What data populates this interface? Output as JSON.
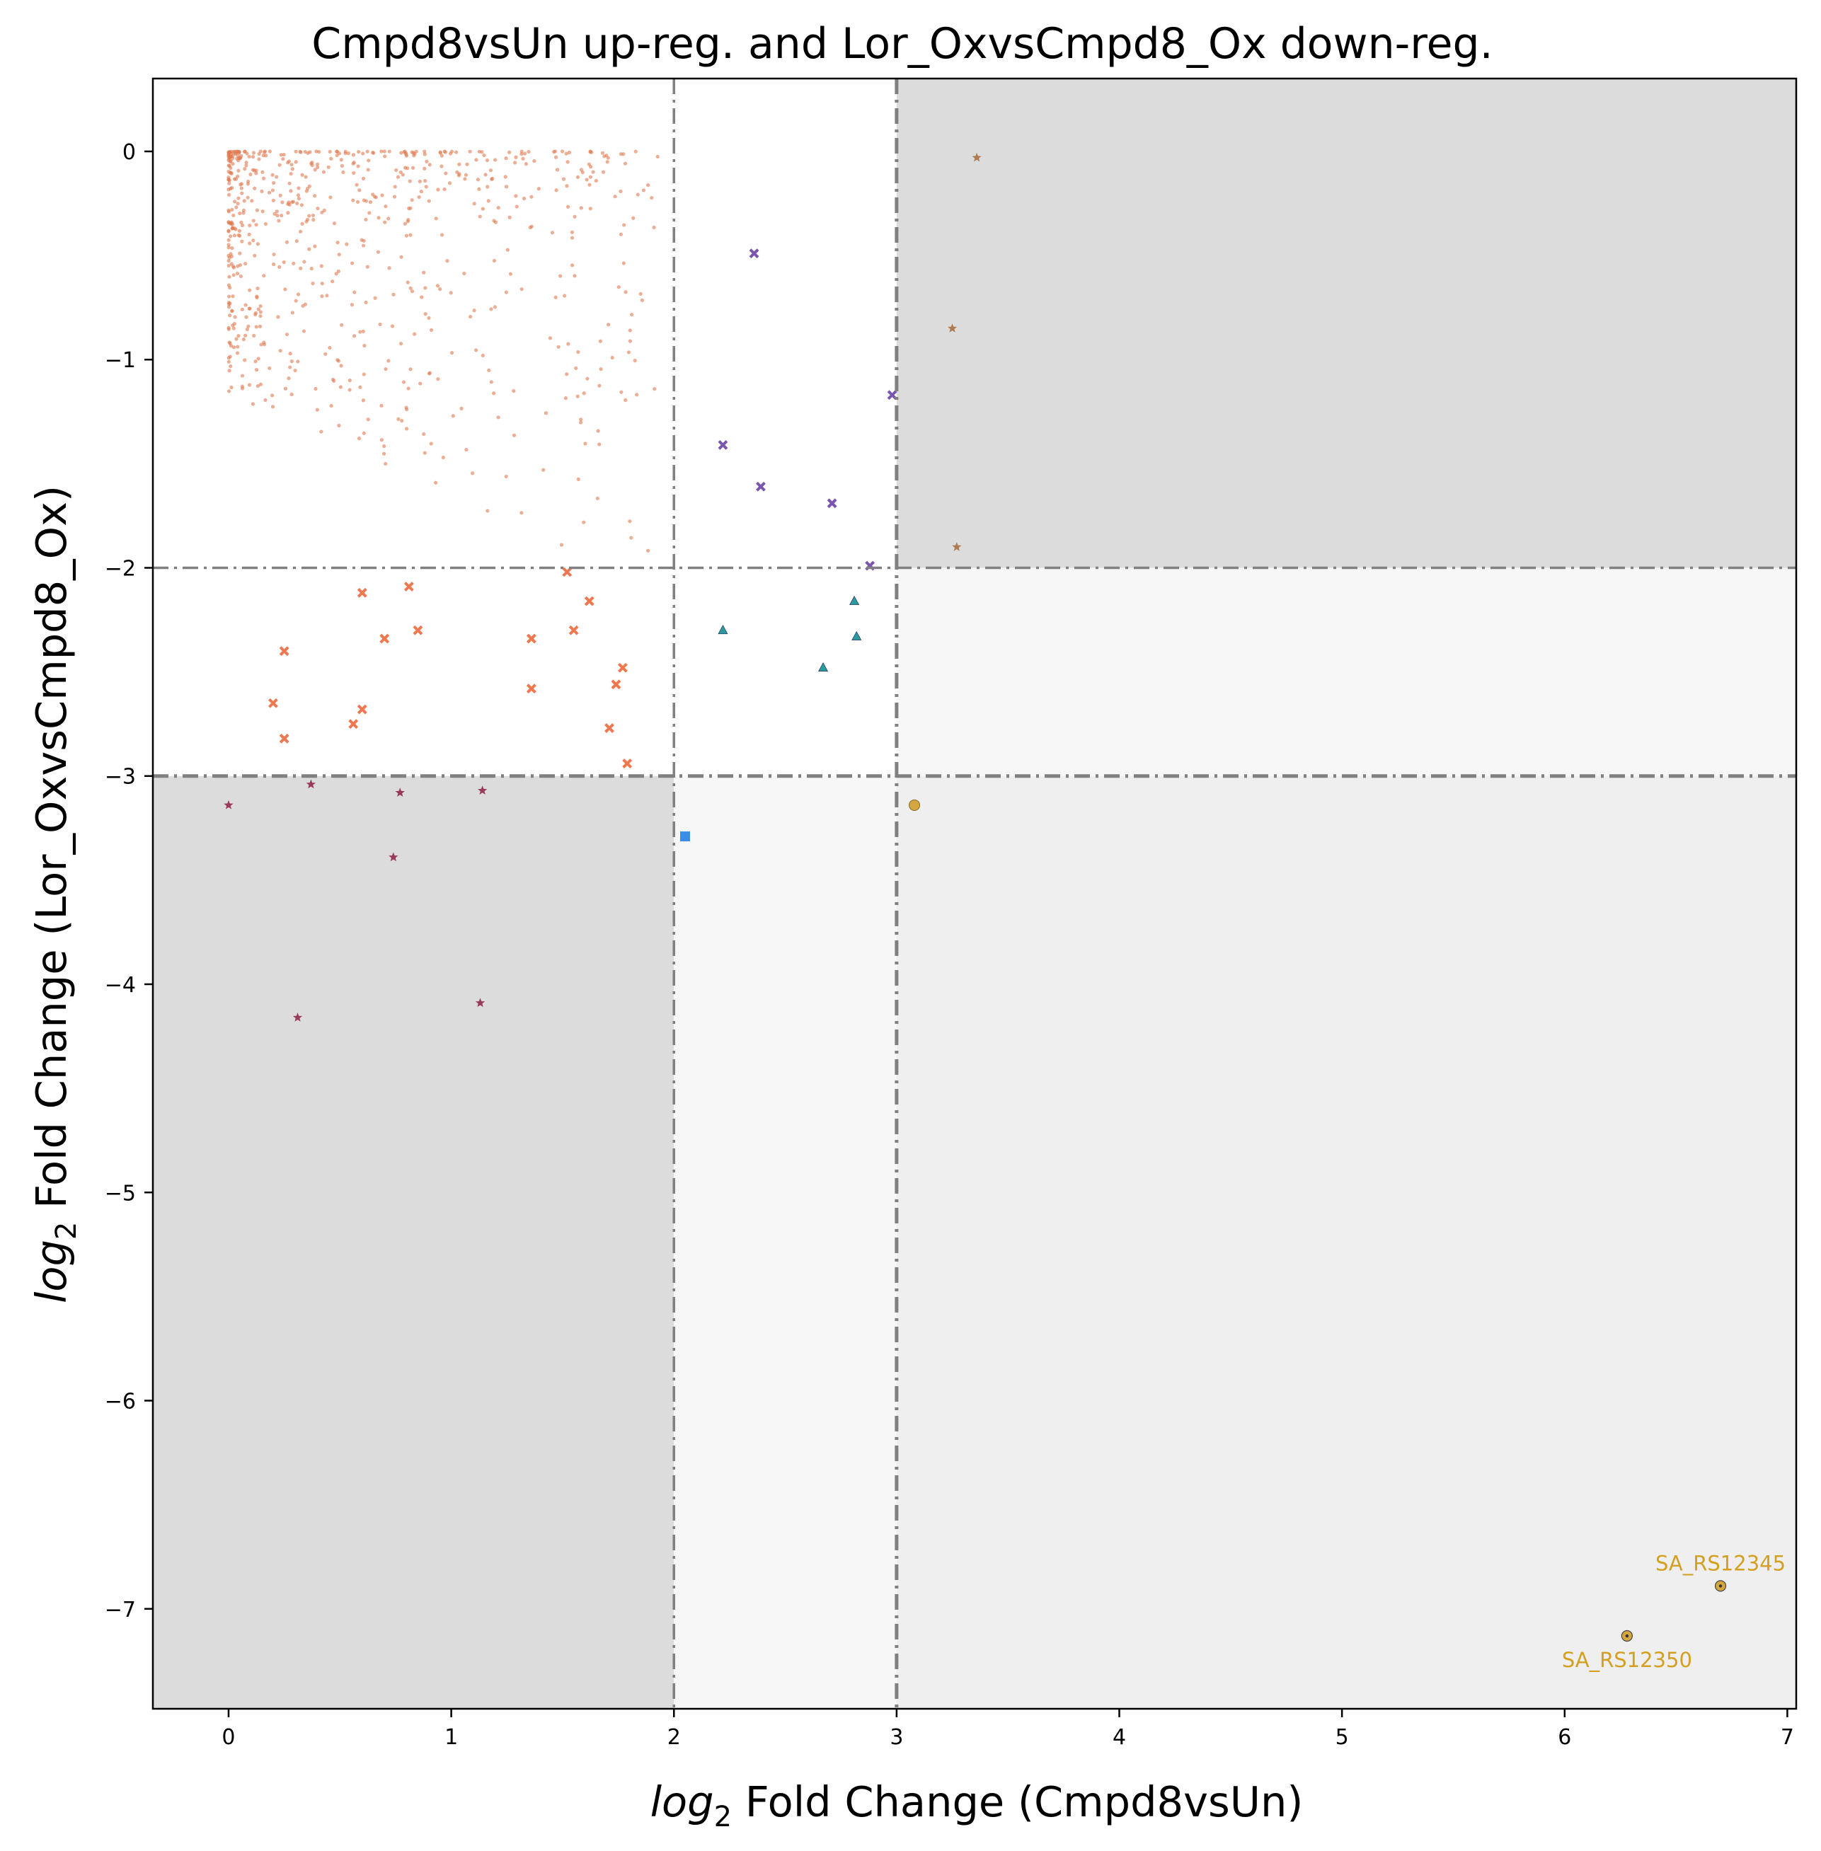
{
  "chart_data": {
    "type": "scatter",
    "title": "Cmpd8vsUn up-reg. and Lor_OxvsCmpd8_Ox down-reg.",
    "xlabel": {
      "italic": "log",
      "sub": "2",
      "rest": " Fold Change (Cmpd8vsUn)"
    },
    "ylabel": {
      "italic": "log",
      "sub": "2",
      "rest": " Fold Change (Lor_OxvsCmpd8_Ox)"
    },
    "xlim": [
      -0.34,
      7.04
    ],
    "ylim": [
      -7.48,
      0.35
    ],
    "x_ticks": [
      0,
      1,
      2,
      3,
      4,
      5,
      6,
      7
    ],
    "y_ticks": [
      0,
      -1,
      -2,
      -3,
      -4,
      -5,
      -6,
      -7
    ],
    "x_tick_labels": [
      "0",
      "1",
      "2",
      "3",
      "4",
      "5",
      "6",
      "7"
    ],
    "y_tick_labels": [
      "0",
      "−1",
      "−2",
      "−3",
      "−4",
      "−5",
      "−6",
      "−7"
    ],
    "grid": false,
    "thresholds": {
      "x": [
        2,
        3
      ],
      "y": [
        -2,
        -3
      ]
    },
    "regions": [
      {
        "x": [
          3,
          7.04
        ],
        "y": [
          -2,
          0.35
        ],
        "color": "#dcdcdc"
      },
      {
        "x": [
          -0.34,
          2
        ],
        "y": [
          -7.48,
          -3
        ],
        "color": "#dcdcdc"
      },
      {
        "x": [
          3,
          7.04
        ],
        "y": [
          -3,
          -2
        ],
        "color": "#f7f7f7"
      },
      {
        "x": [
          2,
          3
        ],
        "y": [
          -7.48,
          -3
        ],
        "color": "#f7f7f7"
      },
      {
        "x": [
          3,
          7.04
        ],
        "y": [
          -7.48,
          -3
        ],
        "color": "#efefef"
      }
    ],
    "background_points": {
      "color": "#e07a50",
      "note_count": 700,
      "x_range": [
        0,
        1.93
      ],
      "y_range": [
        -1.95,
        0
      ]
    },
    "series": [
      {
        "marker": "x",
        "color": "#f07850",
        "points": [
          [
            0.25,
            -2.4
          ],
          [
            0.2,
            -2.65
          ],
          [
            0.25,
            -2.82
          ],
          [
            0.6,
            -2.12
          ],
          [
            0.6,
            -2.68
          ],
          [
            0.56,
            -2.75
          ],
          [
            0.7,
            -2.34
          ],
          [
            0.81,
            -2.09
          ],
          [
            0.85,
            -2.3
          ],
          [
            1.36,
            -2.34
          ],
          [
            1.36,
            -2.58
          ],
          [
            1.52,
            -2.02
          ],
          [
            1.55,
            -2.3
          ],
          [
            1.62,
            -2.16
          ],
          [
            1.71,
            -2.77
          ],
          [
            1.74,
            -2.56
          ],
          [
            1.77,
            -2.48
          ],
          [
            1.79,
            -2.94
          ]
        ]
      },
      {
        "marker": "x",
        "color": "#7a55b0",
        "points": [
          [
            2.36,
            -0.49
          ],
          [
            2.22,
            -1.41
          ],
          [
            2.39,
            -1.61
          ],
          [
            2.71,
            -1.69
          ],
          [
            2.88,
            -1.99
          ],
          [
            2.98,
            -1.17
          ]
        ]
      },
      {
        "marker": "triangle",
        "color": "#2a9a9a",
        "points": [
          [
            2.22,
            -2.3
          ],
          [
            2.67,
            -2.48
          ],
          [
            2.81,
            -2.16
          ],
          [
            2.82,
            -2.33
          ]
        ]
      },
      {
        "marker": "star",
        "color": "#b07a50",
        "points": [
          [
            3.36,
            -0.03
          ],
          [
            3.25,
            -0.85
          ],
          [
            3.27,
            -1.9
          ]
        ]
      },
      {
        "marker": "star",
        "color": "#9a3a5a",
        "points": [
          [
            0.0,
            -3.14
          ],
          [
            0.37,
            -3.04
          ],
          [
            0.77,
            -3.08
          ],
          [
            1.14,
            -3.07
          ],
          [
            0.74,
            -3.39
          ],
          [
            0.31,
            -4.16
          ],
          [
            1.13,
            -4.09
          ]
        ]
      },
      {
        "marker": "square",
        "color": "#3a8ee6",
        "points": [
          [
            2.05,
            -3.29
          ]
        ]
      },
      {
        "marker": "circle",
        "color": "#d4a640",
        "points": [
          [
            3.08,
            -3.14
          ]
        ]
      },
      {
        "marker": "circle-dot",
        "color": "#d4a640",
        "points": [
          [
            6.7,
            -6.89
          ],
          [
            6.28,
            -7.13
          ]
        ]
      }
    ],
    "annotations": [
      {
        "text": "SA_RS12345",
        "x": 6.7,
        "y": -6.89,
        "color": "#d4a020",
        "position": "above"
      },
      {
        "text": "SA_RS12350",
        "x": 6.28,
        "y": -7.13,
        "color": "#d4a020",
        "position": "below"
      }
    ]
  }
}
